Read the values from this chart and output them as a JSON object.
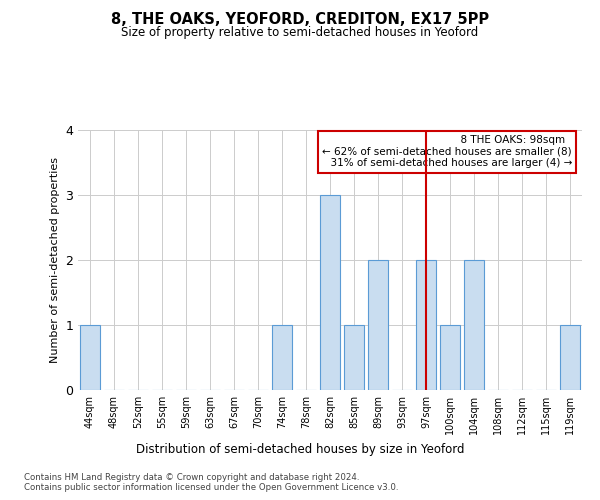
{
  "title": "8, THE OAKS, YEOFORD, CREDITON, EX17 5PP",
  "subtitle": "Size of property relative to semi-detached houses in Yeoford",
  "xlabel": "Distribution of semi-detached houses by size in Yeoford",
  "ylabel": "Number of semi-detached properties",
  "categories": [
    "44sqm",
    "48sqm",
    "52sqm",
    "55sqm",
    "59sqm",
    "63sqm",
    "67sqm",
    "70sqm",
    "74sqm",
    "78sqm",
    "82sqm",
    "85sqm",
    "89sqm",
    "93sqm",
    "97sqm",
    "100sqm",
    "104sqm",
    "108sqm",
    "112sqm",
    "115sqm",
    "119sqm"
  ],
  "values": [
    1,
    0,
    0,
    0,
    0,
    0,
    0,
    0,
    1,
    0,
    3,
    1,
    2,
    0,
    2,
    1,
    2,
    0,
    0,
    0,
    1
  ],
  "bar_color": "#c9ddf0",
  "bar_edge_color": "#5b9bd5",
  "property_line_index": 14,
  "property_label": "8 THE OAKS: 98sqm",
  "smaller_pct": "62%",
  "smaller_count": 8,
  "larger_pct": "31%",
  "larger_count": 4,
  "ylim": [
    0,
    4
  ],
  "yticks": [
    0,
    1,
    2,
    3,
    4
  ],
  "annotation_box_color": "#ffffff",
  "annotation_box_edge_color": "#cc0000",
  "vline_color": "#cc0000",
  "grid_color": "#cccccc",
  "background_color": "#ffffff",
  "footer_line1": "Contains HM Land Registry data © Crown copyright and database right 2024.",
  "footer_line2": "Contains public sector information licensed under the Open Government Licence v3.0."
}
